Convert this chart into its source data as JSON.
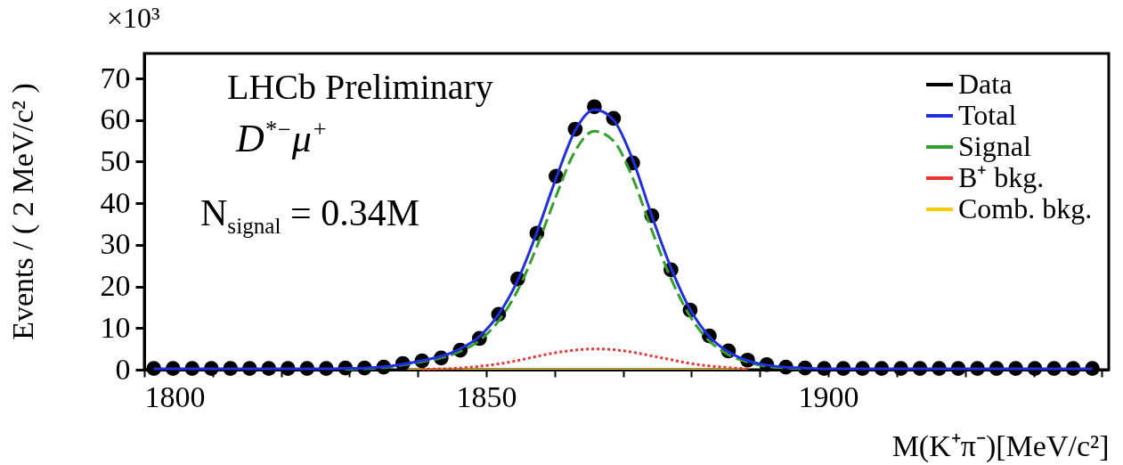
{
  "chart_data": {
    "type": "line",
    "xlabel": "M(K⁺π⁻)[MeV/c²]",
    "ylabel": "Events / ( 2 MeV/c² )",
    "annotations": [
      "×10³",
      "LHCb Preliminary",
      "D$^{*−}$μ$^{+}$",
      "N$_{signal}$ = 0.34M"
    ],
    "x": [
      1801.4,
      1804.2,
      1807.0,
      1809.8,
      1812.6,
      1815.4,
      1818.2,
      1821.0,
      1823.8,
      1826.6,
      1829.4,
      1832.2,
      1835.0,
      1837.8,
      1840.6,
      1843.4,
      1846.2,
      1849.0,
      1851.8,
      1854.6,
      1857.4,
      1860.2,
      1863.0,
      1865.8,
      1868.6,
      1871.4,
      1874.2,
      1877.0,
      1879.8,
      1882.6,
      1885.4,
      1888.2,
      1891.0,
      1893.8,
      1896.6,
      1899.4,
      1902.2,
      1905.0,
      1907.8,
      1910.6,
      1913.4,
      1916.2,
      1919.0,
      1921.8,
      1924.6,
      1927.4,
      1930.2,
      1933.0,
      1935.8,
      1938.6
    ],
    "series": [
      {
        "name": "Data",
        "type": "scatter",
        "marker": "circle",
        "color": "#000000",
        "values": [
          0.3,
          0.3,
          0.3,
          0.3,
          0.3,
          0.3,
          0.3,
          0.3,
          0.3,
          0.3,
          0.4,
          0.4,
          0.6,
          1.5,
          2.1,
          2.8,
          4.7,
          7.5,
          13.3,
          21.8,
          32.8,
          46.5,
          57.8,
          63.2,
          60.4,
          49.7,
          37.0,
          24.0,
          14.3,
          8.1,
          4.5,
          2.3,
          1.2,
          0.6,
          0.4,
          0.3,
          0.3,
          0.3,
          0.3,
          0.3,
          0.3,
          0.3,
          0.3,
          0.3,
          0.3,
          0.3,
          0.3,
          0.3,
          0.3,
          0.3
        ]
      },
      {
        "name": "Total",
        "type": "line",
        "line_style": "solid",
        "color": "#2030e0",
        "values": [
          0.2,
          0.2,
          0.2,
          0.2,
          0.2,
          0.2,
          0.2,
          0.2,
          0.2,
          0.2,
          0.3,
          0.4,
          0.7,
          1.3,
          2.2,
          3.2,
          5.0,
          8.0,
          13.3,
          21.5,
          33.0,
          46.0,
          57.5,
          62.5,
          60.0,
          50.5,
          37.0,
          24.5,
          14.5,
          8.0,
          4.3,
          2.2,
          1.1,
          0.6,
          0.4,
          0.2,
          0.2,
          0.2,
          0.2,
          0.2,
          0.2,
          0.2,
          0.2,
          0.2,
          0.2,
          0.2,
          0.2,
          0.2,
          0.2,
          0.2
        ]
      },
      {
        "name": "Signal",
        "type": "line",
        "line_style": "dashed",
        "color": "#33a02c",
        "values": [
          null,
          null,
          null,
          null,
          null,
          null,
          null,
          null,
          null,
          null,
          0.1,
          0.2,
          0.5,
          1.1,
          1.9,
          2.8,
          4.4,
          7.0,
          11.7,
          19.1,
          29.6,
          41.7,
          52.6,
          57.3,
          55.0,
          46.1,
          33.5,
          21.9,
          12.8,
          6.9,
          3.6,
          1.8,
          0.8,
          0.4,
          0.2,
          null,
          null,
          null,
          null,
          null,
          null,
          null,
          null,
          null,
          null,
          null,
          null,
          null,
          null,
          null
        ]
      },
      {
        "name": "B⁺ bkg.",
        "line_style": "dotted",
        "color": "#ee3333",
        "values": [
          null,
          null,
          null,
          null,
          null,
          null,
          null,
          null,
          null,
          null,
          null,
          null,
          null,
          null,
          0.1,
          0.2,
          0.4,
          0.8,
          1.4,
          2.2,
          3.2,
          4.1,
          4.7,
          5.0,
          4.8,
          4.2,
          3.3,
          2.4,
          1.5,
          0.9,
          0.5,
          0.2,
          null,
          null,
          null,
          null,
          null,
          null,
          null,
          null,
          null,
          null,
          null,
          null,
          null,
          null,
          null,
          null,
          null,
          null
        ]
      },
      {
        "name": "Comb. bkg.",
        "type": "area",
        "color": "#ffcc00",
        "values": [
          null,
          null,
          null,
          null,
          null,
          null,
          null,
          null,
          null,
          null,
          null,
          null,
          null,
          0.2,
          0.2,
          0.2,
          0.2,
          0.2,
          0.2,
          0.2,
          0.2,
          0.2,
          0.2,
          0.2,
          0.2,
          0.2,
          0.2,
          0.2,
          0.2,
          0.2,
          0.2,
          0.2,
          null,
          null,
          null,
          null,
          null,
          null,
          null,
          null,
          null,
          null,
          null,
          null,
          null,
          null,
          null,
          null,
          null,
          null
        ]
      }
    ],
    "xlim": [
      1800,
      1941
    ],
    "xticks": [
      1800,
      {
        "value": 1810,
        "label": null
      },
      {
        "value": 1820,
        "label": null
      },
      {
        "value": 1830,
        "label": null
      },
      {
        "value": 1840,
        "label": null
      },
      1850,
      {
        "value": 1860,
        "label": null
      },
      {
        "value": 1870,
        "label": null
      },
      {
        "value": 1880,
        "label": null
      },
      {
        "value": 1890,
        "label": null
      },
      1900,
      {
        "value": 1910,
        "label": null
      },
      {
        "value": 1920,
        "label": null
      },
      {
        "value": 1930,
        "label": null
      },
      {
        "value": 1940,
        "label": null
      }
    ],
    "ylim": [
      0,
      76
    ],
    "yticks": [
      0,
      10,
      20,
      30,
      40,
      50,
      60,
      70
    ],
    "legend": "top right"
  }
}
